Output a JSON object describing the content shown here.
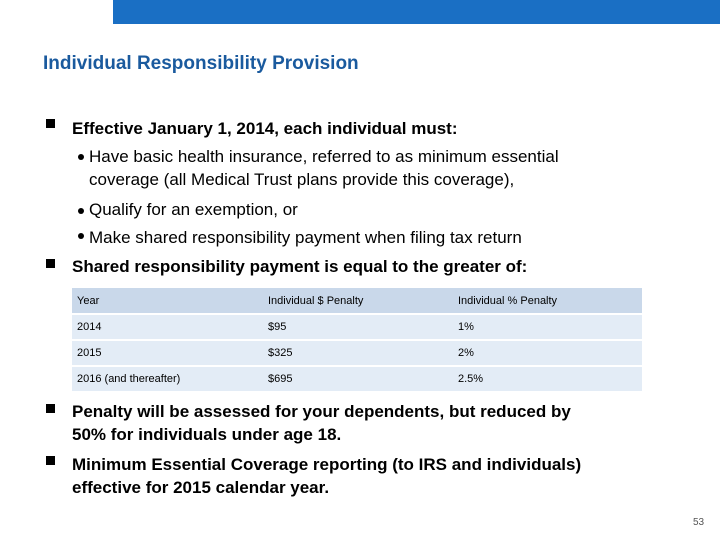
{
  "title": "Individual Responsibility Provision",
  "bullets_top": [
    {
      "text": "Effective January 1, 2014, each individual must:",
      "sub_items": [
        [
          "Have basic health insurance, referred to as minimum essential",
          "coverage (all Medical Trust plans provide this coverage),"
        ],
        [
          "Qualify for an exemption, or"
        ],
        [
          "Make shared responsibility payment when filing tax return"
        ]
      ]
    },
    {
      "text": "Shared responsibility payment is equal to the greater of:"
    }
  ],
  "table": {
    "headers": [
      "Year",
      "Individual $ Penalty",
      "Individual % Penalty"
    ],
    "rows": [
      [
        "2014",
        "$95",
        "1%"
      ],
      [
        "2015",
        "$325",
        "2%"
      ],
      [
        "2016 (and thereafter)",
        "$695",
        "2.5%"
      ]
    ]
  },
  "bullets_bottom": [
    [
      "Penalty will be assessed for your dependents, but reduced by",
      "50% for individuals under age 18."
    ],
    [
      "Minimum Essential Coverage reporting (to IRS and individuals)",
      "effective for 2015 calendar year."
    ]
  ],
  "page_number": "53",
  "colors": {
    "accent_bar": "#1a6fc4",
    "title": "#1a5a9e",
    "table_header": "#c9d8ea",
    "table_row": "#e3ecf6"
  }
}
